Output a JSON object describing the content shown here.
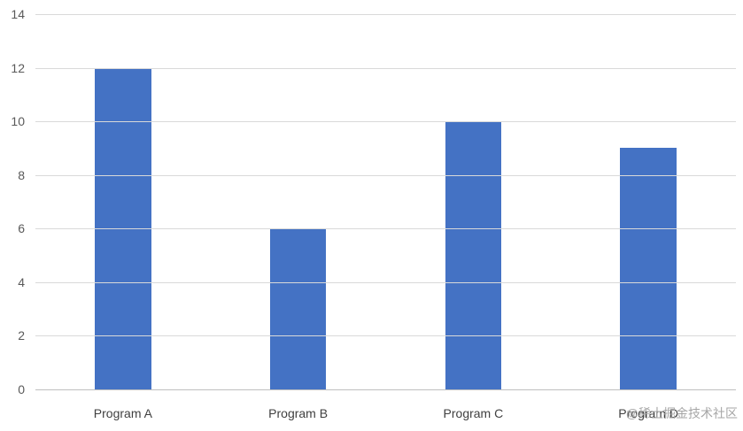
{
  "chart_data": {
    "type": "bar",
    "title": "",
    "categories": [
      "Program A",
      "Program B",
      "Program C",
      "Program D"
    ],
    "values": [
      12,
      6,
      10,
      9
    ],
    "xlabel": "",
    "ylabel": "",
    "ylim": [
      0,
      14
    ],
    "yticks": [
      0,
      2,
      4,
      6,
      8,
      10,
      12,
      14
    ],
    "grid": true,
    "legend": "none",
    "bar_color": "#4472c4",
    "gridline_color": "#d9d9d9",
    "label_color": "#595959"
  },
  "watermark": "@稀土掘金技术社区"
}
